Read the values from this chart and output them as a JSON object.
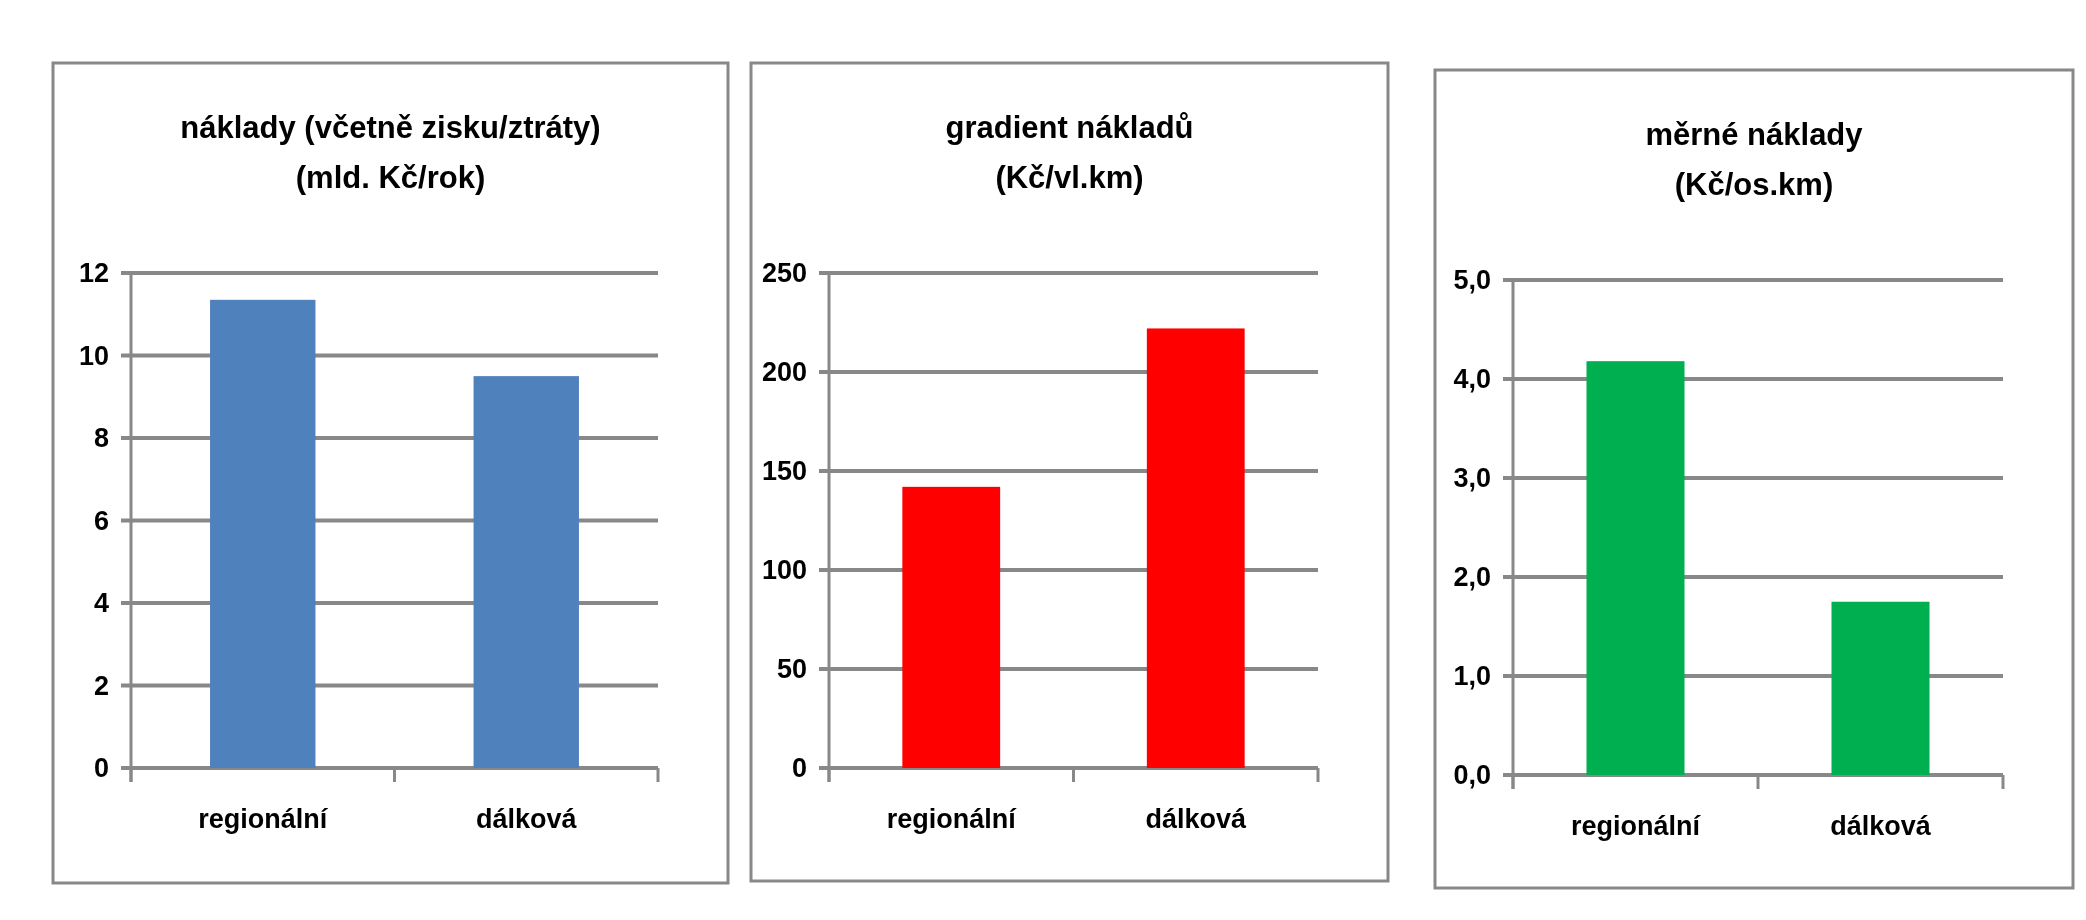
{
  "chart_data": [
    {
      "type": "bar",
      "title": "náklady (včetně zisku/ztráty)",
      "subtitle": "(mld. Kč/rok)",
      "categories": [
        "regionální",
        "dálková"
      ],
      "values": [
        11.35,
        9.5
      ],
      "color": "#4f81bd",
      "ylim": [
        0,
        12
      ],
      "yticks": [
        0,
        2,
        4,
        6,
        8,
        10,
        12
      ],
      "grid": "y"
    },
    {
      "type": "bar",
      "title": "gradient nákladů",
      "subtitle": "(Kč/vl.km)",
      "categories": [
        "regionální",
        "dálková"
      ],
      "values": [
        142,
        222
      ],
      "color": "#ff0000",
      "ylim": [
        0,
        250
      ],
      "yticks": [
        0,
        50,
        100,
        150,
        200,
        250
      ],
      "grid": "y"
    },
    {
      "type": "bar",
      "title": "měrné náklady",
      "subtitle": "(Kč/os.km)",
      "categories": [
        "regionální",
        "dálková"
      ],
      "values": [
        4.18,
        1.75
      ],
      "color": "#00b050",
      "ylim": [
        0,
        5
      ],
      "yticks": [
        {
          "value": 0,
          "label": "0,0"
        },
        {
          "value": 1,
          "label": "1,0"
        },
        {
          "value": 2,
          "label": "2,0"
        },
        {
          "value": 3,
          "label": "3,0"
        },
        {
          "value": 4,
          "label": "4,0"
        },
        {
          "value": 5,
          "label": "5,0"
        }
      ],
      "grid": "y"
    }
  ]
}
